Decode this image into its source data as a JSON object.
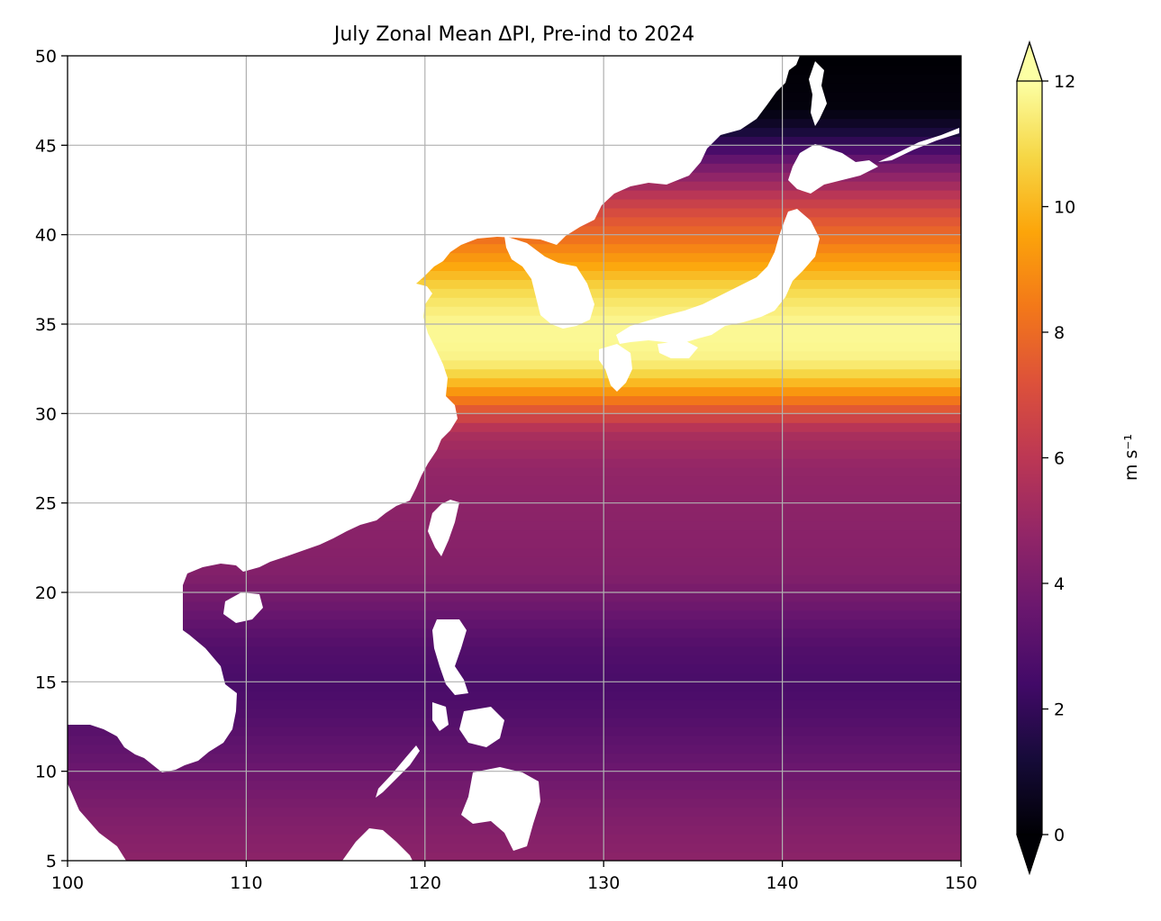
{
  "title": "July Zonal Mean ΔPI, Pre-ind to 2024",
  "colorbar": {
    "label": "m s⁻¹",
    "ticks": [
      "0",
      "2",
      "4",
      "6",
      "8",
      "10",
      "12"
    ],
    "range": [
      0,
      12
    ],
    "extend": "both",
    "colormap": "inferno"
  },
  "chart_data": {
    "type": "heatmap",
    "title": "July Zonal Mean ΔPI, Pre-ind to 2024",
    "xlim": [
      100,
      150
    ],
    "ylim": [
      5,
      50
    ],
    "x_ticks": [
      100,
      110,
      120,
      130,
      140,
      150
    ],
    "y_ticks": [
      5,
      10,
      15,
      20,
      25,
      30,
      35,
      40,
      45,
      50
    ],
    "grid": true,
    "land_color": "#ffffff",
    "units": "m s⁻¹",
    "latitudes": [
      5,
      7,
      9,
      11,
      13,
      15,
      17,
      19,
      21,
      23,
      25,
      27,
      29,
      30,
      31,
      32,
      33,
      34,
      35,
      36,
      37,
      38,
      39,
      40,
      41,
      42,
      43,
      44,
      45,
      46,
      47,
      50
    ],
    "zonal_mean_values": [
      4.6,
      4.3,
      3.9,
      3.4,
      2.9,
      2.6,
      2.9,
      3.6,
      4.3,
      4.5,
      4.6,
      4.8,
      5.5,
      7.0,
      8.8,
      10.5,
      11.6,
      11.8,
      11.8,
      11.4,
      10.8,
      9.9,
      9.0,
      8.0,
      7.2,
      6.2,
      5.0,
      3.8,
      2.2,
      1.0,
      0.2,
      0.0
    ]
  }
}
